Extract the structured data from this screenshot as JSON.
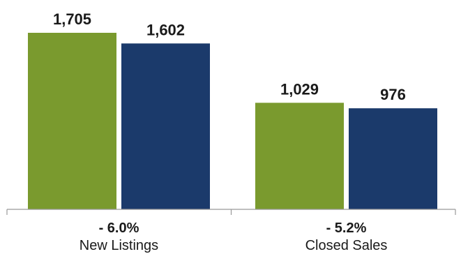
{
  "chart_data": {
    "type": "bar",
    "categories": [
      "New Listings",
      "Closed Sales"
    ],
    "change_labels": [
      "- 6.0%",
      "- 5.2%"
    ],
    "series": [
      {
        "values": [
          1705,
          1029
        ],
        "value_labels": [
          "1,705",
          "1,029"
        ],
        "color": "#7a9a2e"
      },
      {
        "values": [
          1602,
          976
        ],
        "value_labels": [
          "1,602",
          "976"
        ],
        "color": "#1b3a6b"
      }
    ],
    "ylim": [
      0,
      1705
    ],
    "grid": false,
    "axis_color": "#999999"
  }
}
